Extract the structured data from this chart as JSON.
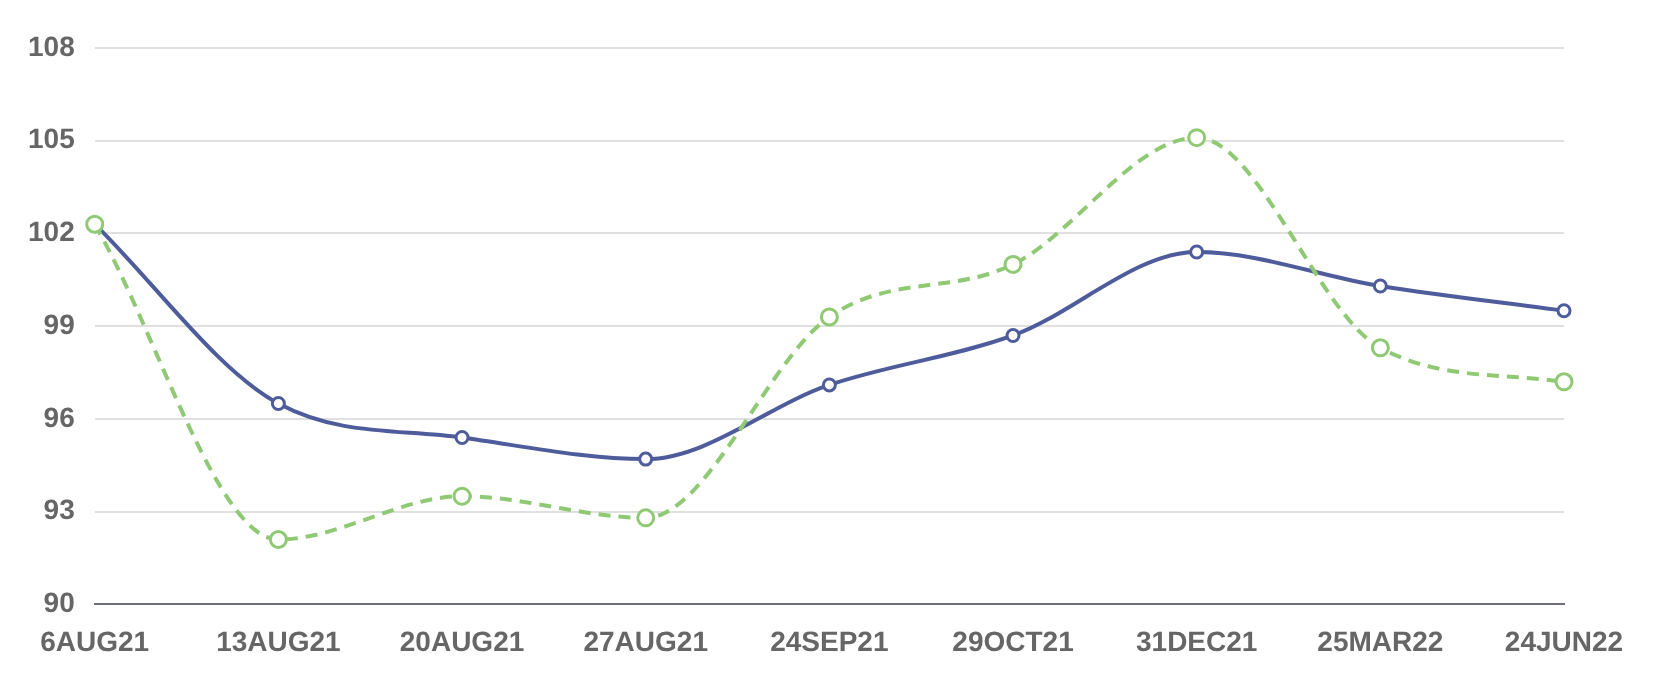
{
  "chart_data": {
    "type": "line",
    "categories": [
      "6AUG21",
      "13AUG21",
      "20AUG21",
      "27AUG21",
      "24SEP21",
      "29OCT21",
      "31DEC21",
      "25MAR22",
      "24JUN22"
    ],
    "series": [
      {
        "color": "#4e5c9c",
        "values": [
          102.3,
          96.5,
          95.4,
          94.7,
          97.1,
          98.7,
          101.4,
          100.3,
          99.5
        ],
        "line_style": "solid"
      },
      {
        "color": "#8fc974",
        "values": [
          102.3,
          92.1,
          93.5,
          92.8,
          99.3,
          101.0,
          105.1,
          98.3,
          97.2
        ],
        "line_style": "dashed"
      }
    ],
    "ylim": [
      90,
      108
    ],
    "yticks": [
      90,
      93,
      96,
      99,
      102,
      105,
      108
    ],
    "grid": "y",
    "marker": "circle"
  }
}
